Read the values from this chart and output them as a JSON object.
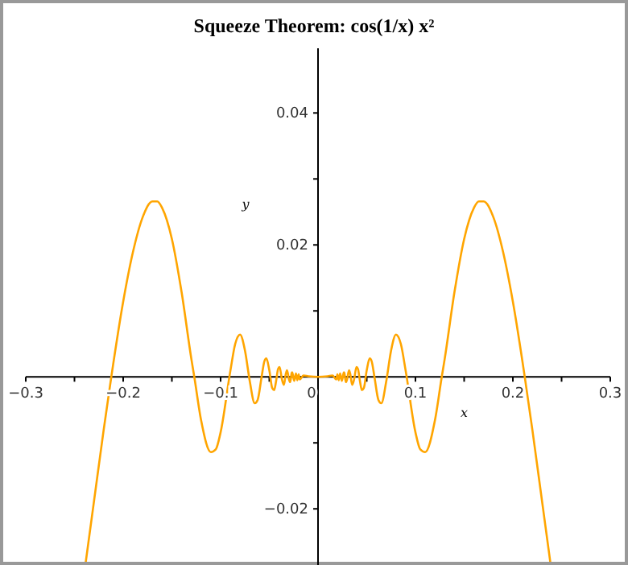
{
  "chart_data": {
    "type": "line",
    "title": "Squeeze Theorem: cos(1/x) x²",
    "xlabel": "x",
    "ylabel": "y",
    "x": [
      -0.239,
      -0.23,
      -0.22,
      -0.212,
      -0.2,
      -0.19,
      -0.18,
      -0.17,
      -0.165,
      -0.16,
      -0.15,
      -0.14,
      -0.13,
      -0.127,
      -0.12,
      -0.11,
      -0.105,
      -0.1,
      -0.09,
      -0.085,
      -0.08,
      -0.075,
      -0.07,
      -0.065,
      -0.062,
      -0.058,
      -0.055,
      -0.053,
      -0.05,
      -0.047,
      -0.045,
      -0.043,
      -0.041,
      -0.0395,
      -0.037,
      -0.035,
      -0.033,
      -0.0318,
      -0.03,
      -0.0286,
      -0.027,
      -0.0265,
      -0.0245,
      -0.0227,
      -0.0212,
      -0.0199,
      -0.0187,
      -0.015,
      -0.01,
      0,
      0.01,
      0.015,
      0.0187,
      0.0199,
      0.0212,
      0.0227,
      0.0245,
      0.0265,
      0.027,
      0.0286,
      0.03,
      0.0318,
      0.033,
      0.035,
      0.037,
      0.0395,
      0.041,
      0.043,
      0.045,
      0.047,
      0.05,
      0.053,
      0.055,
      0.058,
      0.062,
      0.065,
      0.07,
      0.075,
      0.08,
      0.085,
      0.09,
      0.1,
      0.105,
      0.11,
      0.12,
      0.127,
      0.13,
      0.14,
      0.15,
      0.16,
      0.165,
      0.17,
      0.18,
      0.19,
      0.2,
      0.212,
      0.22,
      0.23,
      0.239
    ],
    "series": [
      {
        "color": "#ffa500",
        "values": [
          -0.0287,
          -0.0189,
          -0.008,
          0.0002,
          0.0114,
          0.0189,
          0.0242,
          0.0266,
          0.0266,
          0.0256,
          0.0209,
          0.0128,
          0.0027,
          0,
          -0.0066,
          -0.0114,
          -0.011,
          -0.0084,
          0.0009,
          0.005,
          0.0064,
          0.004,
          -0.0007,
          -0.004,
          -0.0035,
          -0.0001,
          0.0024,
          0.0028,
          0.001,
          -0.0017,
          -0.002,
          -0.0006,
          0.0012,
          0.0015,
          -0.0004,
          -0.0012,
          0.0005,
          0.001,
          -0.0003,
          -0.0008,
          0.0006,
          0.0007,
          -0.0006,
          0.0005,
          -0.0005,
          0.0004,
          -0.0004,
          0.0002,
          0.0001,
          0,
          0.0001,
          0.0002,
          -0.0004,
          0.0004,
          -0.0005,
          0.0005,
          -0.0006,
          0.0007,
          0.0006,
          -0.0008,
          -0.0003,
          0.001,
          0.0005,
          -0.0012,
          -0.0004,
          0.0015,
          0.0012,
          -0.0006,
          -0.002,
          -0.0017,
          0.001,
          0.0028,
          0.0024,
          -0.0001,
          -0.0035,
          -0.004,
          -0.0007,
          0.004,
          0.0064,
          0.005,
          0.0009,
          -0.0084,
          -0.011,
          -0.0114,
          -0.0066,
          0,
          0.0027,
          0.0128,
          0.0209,
          0.0256,
          0.0266,
          0.0266,
          0.0242,
          0.0189,
          0.0114,
          0.0002,
          -0.008,
          -0.0189,
          -0.0287
        ]
      }
    ],
    "xlim": [
      -0.3,
      0.3
    ],
    "ylim": [
      -0.029,
      0.0498
    ],
    "xticks": [
      -0.3,
      {
        "value": -0.25,
        "label": null
      },
      -0.2,
      {
        "value": -0.15,
        "label": null
      },
      -0.1,
      {
        "value": -0.05,
        "label": null
      },
      0,
      {
        "value": 0.05,
        "label": null
      },
      0.1,
      {
        "value": 0.15,
        "label": null
      },
      0.2,
      {
        "value": 0.25,
        "label": null
      },
      0.3
    ],
    "yticks": [
      {
        "value": -0.01,
        "label": null
      },
      -0.02,
      {
        "value": 0.01,
        "label": null
      },
      0.02,
      {
        "value": 0.03,
        "label": null
      },
      0.04
    ],
    "grid": false,
    "marker": "none",
    "line_style": "solid"
  }
}
